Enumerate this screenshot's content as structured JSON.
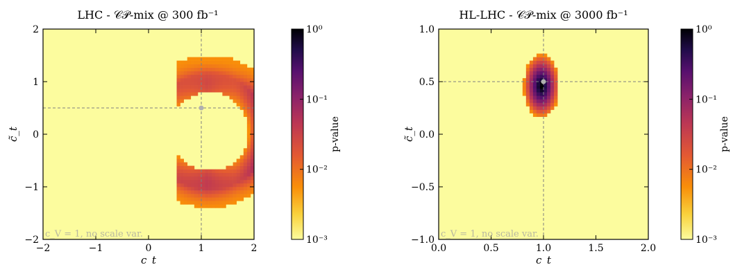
{
  "chart_data": [
    {
      "type": "heatmap",
      "title": "LHC - 𝒞𝒫-mix @ 300 fb⁻¹",
      "xlabel": "c_t",
      "ylabel": "c̃_t",
      "xlim": [
        -2,
        2
      ],
      "ylim": [
        -2,
        2
      ],
      "xticks": [
        {
          "value": -2,
          "label": "−2"
        },
        {
          "value": -1,
          "label": "−1"
        },
        {
          "value": 0,
          "label": "0"
        },
        {
          "value": 1,
          "label": "1"
        },
        {
          "value": 2,
          "label": "2"
        }
      ],
      "yticks": [
        {
          "value": -2,
          "label": "−2"
        },
        {
          "value": -1,
          "label": "−1"
        },
        {
          "value": 0,
          "label": "0"
        },
        {
          "value": 1,
          "label": "1"
        },
        {
          "value": 2,
          "label": "2"
        }
      ],
      "best_fit": {
        "x": 1.0,
        "y": 0.5
      },
      "annotation": "c_V = 1, no scale var.",
      "colorbar": {
        "label": "p-value",
        "scale": "log",
        "range": [
          0.001,
          1
        ],
        "ticks": [
          {
            "value": 1,
            "label": "10⁰"
          },
          {
            "value": 0.1,
            "label": "10⁻¹"
          },
          {
            "value": 0.01,
            "label": "10⁻²"
          },
          {
            "value": 0.001,
            "label": "10⁻³"
          }
        ]
      },
      "region": {
        "shape": "crescent",
        "center": [
          1.15,
          0.05
        ],
        "outer_radius": 1.45,
        "inner_radius": 0.75,
        "cut_x": 0.55
      }
    },
    {
      "type": "heatmap",
      "title": "HL-LHC - 𝒞𝒫-mix @ 3000 fb⁻¹",
      "xlabel": "c_t",
      "ylabel": "c̃_t",
      "xlim": [
        0.0,
        2.0
      ],
      "ylim": [
        -1.0,
        1.0
      ],
      "xticks": [
        {
          "value": 0.0,
          "label": "0.0"
        },
        {
          "value": 0.5,
          "label": "0.5"
        },
        {
          "value": 1.0,
          "label": "1.0"
        },
        {
          "value": 1.5,
          "label": "1.5"
        },
        {
          "value": 2.0,
          "label": "2.0"
        }
      ],
      "yticks": [
        {
          "value": -1.0,
          "label": "−1.0"
        },
        {
          "value": -0.5,
          "label": "−0.5"
        },
        {
          "value": 0.0,
          "label": "0.0"
        },
        {
          "value": 0.5,
          "label": "0.5"
        },
        {
          "value": 1.0,
          "label": "1.0"
        }
      ],
      "best_fit": {
        "x": 1.0,
        "y": 0.5
      },
      "annotation": "c_V = 1, no scale var.",
      "colorbar": {
        "label": "p-value",
        "scale": "log",
        "range": [
          0.001,
          1
        ],
        "ticks": [
          {
            "value": 1,
            "label": "10⁰"
          },
          {
            "value": 0.1,
            "label": "10⁻¹"
          },
          {
            "value": 0.01,
            "label": "10⁻²"
          },
          {
            "value": 0.001,
            "label": "10⁻³"
          }
        ]
      },
      "region": {
        "shape": "blob",
        "center": [
          0.98,
          0.46
        ],
        "half_width": 0.17,
        "half_height": 0.3
      }
    }
  ],
  "colors": {
    "background": "#fcfc9e",
    "colormap": [
      "#fcfc9e",
      "#f9c932",
      "#f98e09",
      "#e35933",
      "#bc3754",
      "#8a226a",
      "#57106e",
      "#210c4a",
      "#000004"
    ],
    "best_fit_marker": "#b0b0b0",
    "guide_line": "#808080"
  }
}
